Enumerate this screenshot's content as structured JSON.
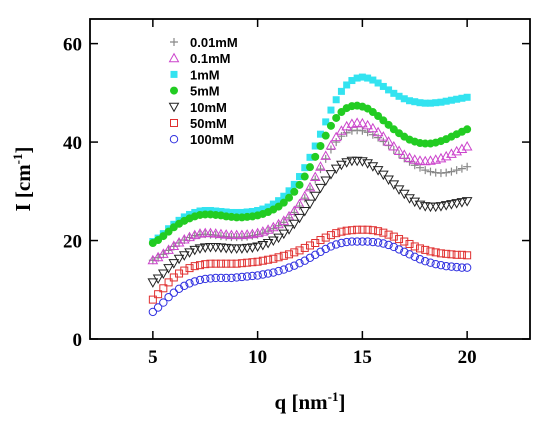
{
  "chart_data": {
    "type": "scatter",
    "title": "",
    "xlabel": "q [nm",
    "xlabel_sup": "-1",
    "xlabel_end": "]",
    "ylabel": "I [cm",
    "ylabel_sup": "-1",
    "ylabel_end": "]",
    "xlim": [
      2,
      23
    ],
    "ylim": [
      0,
      65
    ],
    "xticks": [
      5,
      10,
      15,
      20
    ],
    "yticks": [
      0,
      20,
      40,
      60
    ],
    "grid": false,
    "legend_position": "top-left",
    "x": [
      5.0,
      5.25,
      5.5,
      5.75,
      6.0,
      6.25,
      6.5,
      6.75,
      7.0,
      7.25,
      7.5,
      7.75,
      8.0,
      8.25,
      8.5,
      8.75,
      9.0,
      9.25,
      9.5,
      9.75,
      10.0,
      10.25,
      10.5,
      10.75,
      11.0,
      11.25,
      11.5,
      11.75,
      12.0,
      12.25,
      12.5,
      12.75,
      13.0,
      13.25,
      13.5,
      13.75,
      14.0,
      14.25,
      14.5,
      14.75,
      15.0,
      15.25,
      15.5,
      15.75,
      16.0,
      16.25,
      16.5,
      16.75,
      17.0,
      17.25,
      17.5,
      17.75,
      18.0,
      18.25,
      18.5,
      18.75,
      19.0,
      19.25,
      19.5,
      19.75,
      20.0
    ],
    "series": [
      {
        "name": "0.01mM",
        "marker": "plus",
        "color": "#888888",
        "values": [
          16.0,
          16.5,
          17.2,
          18.0,
          18.8,
          19.5,
          20.1,
          20.6,
          21.0,
          21.2,
          21.3,
          21.2,
          21.1,
          20.9,
          20.8,
          20.7,
          20.7,
          20.7,
          20.8,
          21.0,
          21.2,
          21.5,
          21.9,
          22.4,
          23.0,
          23.7,
          24.6,
          25.7,
          27.0,
          28.6,
          30.4,
          32.4,
          34.5,
          36.6,
          38.5,
          40.0,
          41.2,
          41.9,
          42.3,
          42.4,
          42.3,
          42.0,
          41.5,
          40.9,
          40.1,
          39.3,
          38.4,
          37.5,
          36.7,
          36.0,
          35.3,
          34.8,
          34.3,
          34.0,
          33.8,
          33.7,
          33.8,
          34.0,
          34.3,
          34.6,
          35.0
        ]
      },
      {
        "name": "0.1mM",
        "marker": "triangle-up",
        "color": "#cc44cc",
        "values": [
          16.0,
          16.6,
          17.3,
          18.1,
          18.9,
          19.6,
          20.2,
          20.7,
          21.1,
          21.4,
          21.5,
          21.5,
          21.4,
          21.3,
          21.2,
          21.1,
          21.1,
          21.1,
          21.2,
          21.3,
          21.5,
          21.8,
          22.2,
          22.7,
          23.3,
          24.0,
          24.9,
          26.0,
          27.4,
          29.0,
          30.8,
          32.9,
          35.0,
          37.2,
          39.3,
          41.0,
          42.3,
          43.2,
          43.7,
          43.9,
          43.8,
          43.4,
          42.8,
          42.0,
          41.1,
          40.1,
          39.1,
          38.2,
          37.4,
          36.8,
          36.4,
          36.2,
          36.1,
          36.2,
          36.4,
          36.7,
          37.1,
          37.6,
          38.1,
          38.6,
          39.1
        ]
      },
      {
        "name": "1mM",
        "marker": "square-filled",
        "color": "#33e3f0",
        "values": [
          19.8,
          20.5,
          21.4,
          22.4,
          23.3,
          24.1,
          24.8,
          25.3,
          25.7,
          26.0,
          26.1,
          26.1,
          26.0,
          25.9,
          25.8,
          25.7,
          25.7,
          25.7,
          25.8,
          25.9,
          26.1,
          26.4,
          26.8,
          27.4,
          28.1,
          29.0,
          30.1,
          31.4,
          33.0,
          34.8,
          36.9,
          39.2,
          41.6,
          44.1,
          46.5,
          48.6,
          50.3,
          51.6,
          52.5,
          53.0,
          53.2,
          53.0,
          52.6,
          52.0,
          51.3,
          50.6,
          49.9,
          49.3,
          48.8,
          48.4,
          48.2,
          48.0,
          47.9,
          47.9,
          48.0,
          48.1,
          48.3,
          48.5,
          48.7,
          48.9,
          49.1
        ]
      },
      {
        "name": "5mM",
        "marker": "circle-filled",
        "color": "#22cc22",
        "values": [
          19.5,
          20.1,
          20.9,
          21.8,
          22.7,
          23.4,
          24.0,
          24.5,
          24.9,
          25.2,
          25.3,
          25.3,
          25.2,
          25.1,
          24.9,
          24.8,
          24.7,
          24.7,
          24.8,
          24.9,
          25.1,
          25.4,
          25.8,
          26.3,
          26.9,
          27.7,
          28.7,
          29.9,
          31.3,
          33.0,
          34.9,
          37.0,
          39.2,
          41.3,
          43.3,
          44.9,
          46.1,
          46.9,
          47.3,
          47.4,
          47.2,
          46.8,
          46.1,
          45.3,
          44.4,
          43.5,
          42.6,
          41.8,
          41.1,
          40.5,
          40.1,
          39.8,
          39.7,
          39.7,
          39.9,
          40.2,
          40.6,
          41.1,
          41.6,
          42.1,
          42.6
        ]
      },
      {
        "name": "10mM",
        "marker": "triangle-down",
        "color": "#222222",
        "values": [
          11.5,
          12.3,
          13.3,
          14.4,
          15.4,
          16.3,
          17.0,
          17.6,
          18.1,
          18.4,
          18.6,
          18.7,
          18.7,
          18.6,
          18.5,
          18.4,
          18.4,
          18.4,
          18.5,
          18.6,
          18.8,
          19.1,
          19.5,
          20.0,
          20.6,
          21.4,
          22.3,
          23.4,
          24.6,
          26.0,
          27.5,
          29.1,
          30.7,
          32.2,
          33.5,
          34.6,
          35.4,
          35.9,
          36.2,
          36.2,
          36.1,
          35.7,
          35.1,
          34.3,
          33.4,
          32.4,
          31.4,
          30.4,
          29.5,
          28.6,
          27.9,
          27.3,
          27.0,
          26.9,
          26.9,
          27.0,
          27.2,
          27.4,
          27.6,
          27.8,
          28.0
        ]
      },
      {
        "name": "50mM",
        "marker": "square",
        "color": "#e03030",
        "values": [
          8.0,
          9.1,
          10.3,
          11.5,
          12.5,
          13.3,
          13.9,
          14.4,
          14.8,
          15.0,
          15.2,
          15.3,
          15.3,
          15.3,
          15.3,
          15.3,
          15.3,
          15.4,
          15.5,
          15.6,
          15.7,
          15.9,
          16.1,
          16.3,
          16.6,
          16.9,
          17.2,
          17.6,
          18.0,
          18.5,
          19.0,
          19.5,
          20.1,
          20.6,
          21.1,
          21.5,
          21.8,
          22.0,
          22.1,
          22.2,
          22.2,
          22.2,
          22.1,
          21.9,
          21.6,
          21.2,
          20.8,
          20.3,
          19.8,
          19.3,
          18.8,
          18.4,
          18.1,
          17.8,
          17.6,
          17.4,
          17.3,
          17.2,
          17.1,
          17.1,
          17.0
        ]
      },
      {
        "name": "100mM",
        "marker": "circle",
        "color": "#3030e0",
        "values": [
          5.5,
          6.4,
          7.4,
          8.5,
          9.4,
          10.2,
          10.8,
          11.3,
          11.7,
          12.0,
          12.2,
          12.3,
          12.4,
          12.4,
          12.4,
          12.4,
          12.5,
          12.6,
          12.7,
          12.8,
          12.9,
          13.1,
          13.3,
          13.5,
          13.8,
          14.1,
          14.5,
          14.9,
          15.4,
          15.9,
          16.5,
          17.1,
          17.7,
          18.3,
          18.8,
          19.2,
          19.5,
          19.7,
          19.8,
          19.8,
          19.8,
          19.8,
          19.7,
          19.6,
          19.4,
          19.1,
          18.7,
          18.2,
          17.7,
          17.2,
          16.7,
          16.2,
          15.8,
          15.5,
          15.2,
          15.0,
          14.8,
          14.7,
          14.6,
          14.5,
          14.5
        ]
      }
    ]
  }
}
